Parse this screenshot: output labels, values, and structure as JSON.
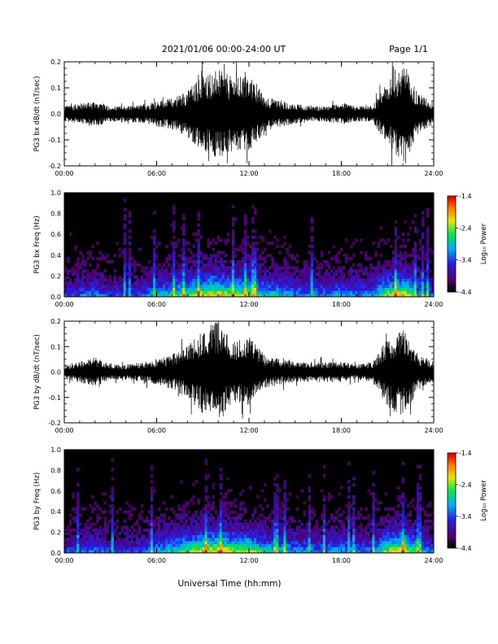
{
  "header": {
    "date_range": "2021/01/06  00:00-24:00 UT",
    "page": "Page 1/1"
  },
  "xlabel": "Universal Time (hh:mm)",
  "chart_data": [
    {
      "type": "line",
      "ylabel": "PG3 bx dB/dt (nT/sec)",
      "xlim": [
        0,
        24
      ],
      "ylim": [
        -0.2,
        0.2
      ],
      "x_ticks": [
        "00:00",
        "06:00",
        "12:00",
        "18:00",
        "24:00"
      ],
      "y_ticks": [
        "-0.2",
        "-0.1",
        "0.0",
        "0.1",
        "0.2"
      ],
      "envelope_hours": [
        0,
        1,
        2,
        3,
        4,
        5,
        6,
        7,
        8,
        9,
        10,
        11,
        12,
        13,
        14,
        15,
        16,
        17,
        18,
        19,
        20,
        21,
        22,
        23,
        24
      ],
      "envelope_amplitude": [
        0.03,
        0.04,
        0.05,
        0.03,
        0.03,
        0.035,
        0.05,
        0.06,
        0.09,
        0.15,
        0.17,
        0.14,
        0.15,
        0.07,
        0.05,
        0.04,
        0.03,
        0.03,
        0.04,
        0.03,
        0.03,
        0.12,
        0.19,
        0.08,
        0.04
      ]
    },
    {
      "type": "heatmap",
      "ylabel": "PG3 bx Freq (Hz)",
      "xlim": [
        0,
        24
      ],
      "ylim": [
        0,
        1.0
      ],
      "x_ticks": [
        "00:00",
        "06:00",
        "12:00",
        "18:00",
        "24:00"
      ],
      "y_ticks": [
        "0.0",
        "0.2",
        "0.4",
        "0.6",
        "0.8",
        "1.0"
      ],
      "colorbar": {
        "label": "Log₁₀ Power",
        "range": [
          -4.4,
          -1.4
        ],
        "ticks": [
          "-1.4",
          "-2.4",
          "-3.4",
          "-4.4"
        ]
      }
    },
    {
      "type": "line",
      "ylabel": "PG3 by dB/dt (nT/sec)",
      "xlim": [
        0,
        24
      ],
      "ylim": [
        -0.2,
        0.2
      ],
      "x_ticks": [
        "00:00",
        "06:00",
        "12:00",
        "18:00",
        "24:00"
      ],
      "y_ticks": [
        "-0.2",
        "-0.1",
        "0.0",
        "0.1",
        "0.2"
      ],
      "envelope_hours": [
        0,
        1,
        2,
        3,
        4,
        5,
        6,
        7,
        8,
        9,
        10,
        11,
        12,
        13,
        14,
        15,
        16,
        17,
        18,
        19,
        20,
        21,
        22,
        23,
        24
      ],
      "envelope_amplitude": [
        0.03,
        0.04,
        0.06,
        0.03,
        0.03,
        0.04,
        0.05,
        0.07,
        0.1,
        0.17,
        0.2,
        0.12,
        0.14,
        0.07,
        0.05,
        0.04,
        0.04,
        0.04,
        0.04,
        0.03,
        0.04,
        0.14,
        0.18,
        0.07,
        0.04
      ]
    },
    {
      "type": "heatmap",
      "ylabel": "PG3 by Freq (Hz)",
      "xlim": [
        0,
        24
      ],
      "ylim": [
        0,
        1.0
      ],
      "x_ticks": [
        "00:00",
        "06:00",
        "12:00",
        "18:00",
        "24:00"
      ],
      "y_ticks": [
        "0.0",
        "0.2",
        "0.4",
        "0.6",
        "0.8",
        "1.0"
      ],
      "colorbar": {
        "label": "Log₁₀ Power",
        "range": [
          -4.4,
          -1.4
        ],
        "ticks": [
          "-1.4",
          "-2.4",
          "-3.4",
          "-4.4"
        ]
      }
    }
  ]
}
